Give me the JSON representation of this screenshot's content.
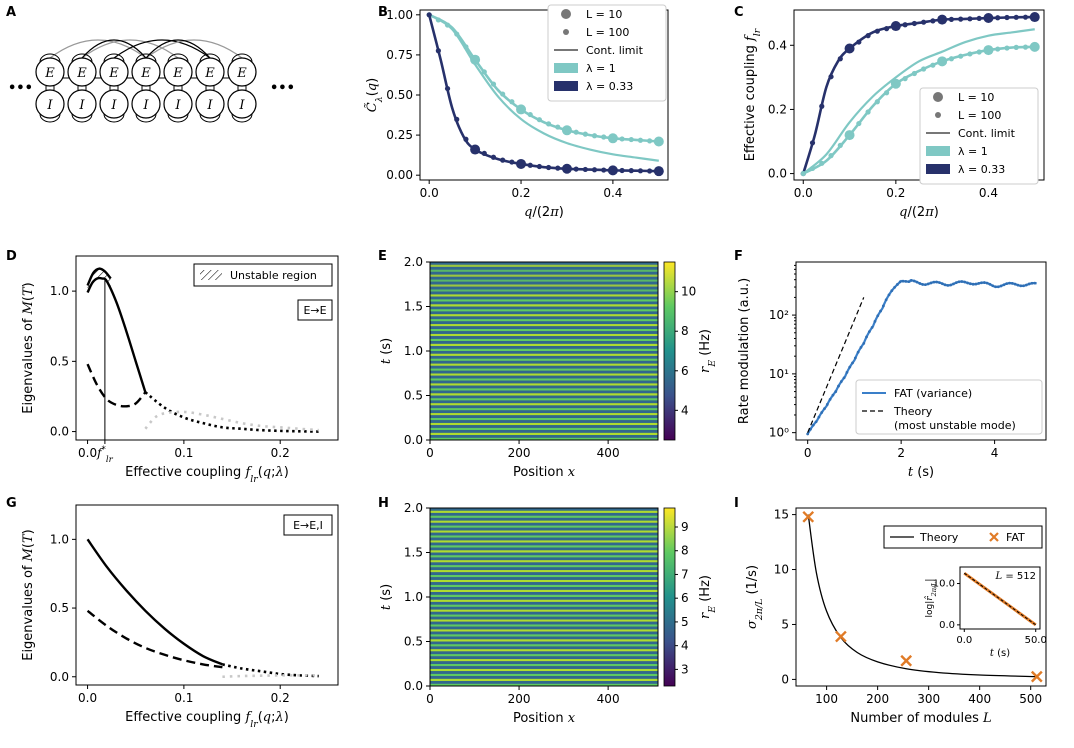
{
  "colors": {
    "teal": "#7fc8c4",
    "navy": "#27316b",
    "gray": "#777777",
    "orange": "#e07b27",
    "light_dots": "#c8c8c8"
  },
  "panels": {
    "A": {
      "label": "A",
      "node_top": "E",
      "node_bottom": "I",
      "ellipsis": "•••"
    },
    "B": {
      "label": "B"
    },
    "C": {
      "label": "C"
    },
    "D": {
      "label": "D",
      "legend_text": "Unstable region",
      "tag": "E→E",
      "fstar_label": "f*lr"
    },
    "E": {
      "label": "E"
    },
    "F": {
      "label": "F"
    },
    "G": {
      "label": "G",
      "tag": "E→E,I"
    },
    "H": {
      "label": "H"
    },
    "I": {
      "label": "I",
      "inset_title": "L = 512"
    }
  },
  "chart_data": [
    {
      "id": "B",
      "type": "line",
      "title": "",
      "xlabel": "q/(2π)",
      "ylabel": "C̃λ(q)",
      "xlim": [
        -0.02,
        0.52
      ],
      "ylim": [
        -0.03,
        1.03
      ],
      "xticks": [
        "0.0",
        "0.2",
        "0.4"
      ],
      "yticks": [
        "0.00",
        "0.25",
        "0.50",
        "0.75",
        "1.00"
      ],
      "legend": [
        "L = 10",
        "L = 100",
        "Cont. limit",
        "λ = 1",
        "λ = 0.33"
      ],
      "series": [
        {
          "name": "λ = 1",
          "kind": "curve",
          "x": [
            0,
            0.05,
            0.1,
            0.15,
            0.2,
            0.25,
            0.3,
            0.35,
            0.4,
            0.45,
            0.5
          ],
          "values": [
            1.0,
            0.92,
            0.72,
            0.53,
            0.41,
            0.33,
            0.28,
            0.25,
            0.23,
            0.22,
            0.21
          ]
        },
        {
          "name": "Cont. limit λ=1",
          "kind": "cont",
          "x": [
            0,
            0.05,
            0.1,
            0.15,
            0.2,
            0.25,
            0.3,
            0.35,
            0.4,
            0.45,
            0.5
          ],
          "values": [
            1.0,
            0.91,
            0.69,
            0.49,
            0.35,
            0.26,
            0.2,
            0.16,
            0.13,
            0.11,
            0.09
          ]
        },
        {
          "name": "λ = 0.33",
          "kind": "curve",
          "x": [
            0,
            0.025,
            0.05,
            0.075,
            0.1,
            0.15,
            0.2,
            0.25,
            0.3,
            0.35,
            0.4,
            0.45,
            0.5
          ],
          "values": [
            1.0,
            0.72,
            0.42,
            0.24,
            0.16,
            0.1,
            0.07,
            0.05,
            0.04,
            0.035,
            0.03,
            0.028,
            0.025
          ]
        }
      ],
      "big_points": [
        {
          "series": "λ = 1",
          "x": [
            0.1,
            0.2,
            0.3,
            0.4,
            0.5
          ],
          "values": [
            0.72,
            0.41,
            0.28,
            0.23,
            0.21
          ]
        },
        {
          "series": "λ = 0.33",
          "x": [
            0.1,
            0.2,
            0.3,
            0.4,
            0.5
          ],
          "values": [
            0.16,
            0.07,
            0.04,
            0.03,
            0.025
          ]
        }
      ]
    },
    {
      "id": "C",
      "type": "line",
      "xlabel": "q/(2π)",
      "ylabel": "Effective coupling flr",
      "xlim": [
        -0.02,
        0.52
      ],
      "ylim": [
        -0.02,
        0.51
      ],
      "xticks": [
        "0.0",
        "0.2",
        "0.4"
      ],
      "yticks": [
        "0.0",
        "0.2",
        "0.4"
      ],
      "legend": [
        "L = 10",
        "L = 100",
        "Cont. limit",
        "λ = 1",
        "λ = 0.33"
      ],
      "series": [
        {
          "name": "λ = 0.33",
          "kind": "curve",
          "x": [
            0,
            0.025,
            0.05,
            0.075,
            0.1,
            0.15,
            0.2,
            0.25,
            0.3,
            0.35,
            0.4,
            0.45,
            0.5
          ],
          "values": [
            0.0,
            0.12,
            0.27,
            0.35,
            0.39,
            0.44,
            0.46,
            0.47,
            0.48,
            0.482,
            0.485,
            0.487,
            0.488
          ]
        },
        {
          "name": "Cont. limit λ=1",
          "kind": "cont",
          "x": [
            0,
            0.05,
            0.1,
            0.15,
            0.2,
            0.25,
            0.3,
            0.35,
            0.4,
            0.45,
            0.5
          ],
          "values": [
            0.0,
            0.06,
            0.16,
            0.24,
            0.3,
            0.35,
            0.38,
            0.41,
            0.43,
            0.44,
            0.45
          ]
        },
        {
          "name": "λ = 1",
          "kind": "curve",
          "x": [
            0,
            0.05,
            0.1,
            0.15,
            0.2,
            0.25,
            0.3,
            0.35,
            0.4,
            0.45,
            0.5
          ],
          "values": [
            0.0,
            0.04,
            0.12,
            0.21,
            0.28,
            0.32,
            0.35,
            0.37,
            0.385,
            0.393,
            0.395
          ]
        }
      ],
      "big_points": [
        {
          "series": "λ = 1",
          "x": [
            0.1,
            0.2,
            0.3,
            0.4,
            0.5
          ],
          "values": [
            0.12,
            0.28,
            0.35,
            0.385,
            0.395
          ]
        },
        {
          "series": "λ = 0.33",
          "x": [
            0.1,
            0.2,
            0.3,
            0.4,
            0.5
          ],
          "values": [
            0.39,
            0.46,
            0.48,
            0.485,
            0.488
          ]
        }
      ]
    },
    {
      "id": "D",
      "type": "line",
      "xlabel": "Effective coupling flr(q;λ)",
      "ylabel": "Eigenvalues of M(T)",
      "xlim": [
        -0.012,
        0.26
      ],
      "ylim": [
        -0.06,
        1.25
      ],
      "xticks": [
        "0.0",
        "0.1",
        "0.2"
      ],
      "yticks": [
        "0.0",
        "0.5",
        "1.0"
      ],
      "fstar_x": 0.018,
      "series": [
        {
          "name": "upper-solid",
          "x": [
            0,
            0.005,
            0.01,
            0.015,
            0.02,
            0.03,
            0.04,
            0.05,
            0.06
          ],
          "values": [
            0.99,
            1.06,
            1.09,
            1.09,
            1.07,
            0.92,
            0.72,
            0.5,
            0.28
          ]
        },
        {
          "name": "upper-arc",
          "x": [
            0,
            0.006,
            0.012,
            0.018,
            0.024
          ],
          "values": [
            1.04,
            1.13,
            1.16,
            1.14,
            1.09
          ]
        },
        {
          "name": "lower-dashed",
          "x": [
            0,
            0.01,
            0.02,
            0.03,
            0.04,
            0.05,
            0.06
          ],
          "values": [
            0.48,
            0.33,
            0.23,
            0.19,
            0.18,
            0.2,
            0.28
          ]
        },
        {
          "name": "dotted-black",
          "x": [
            0.06,
            0.08,
            0.1,
            0.12,
            0.14,
            0.16,
            0.18,
            0.2,
            0.22,
            0.24
          ],
          "values": [
            0.28,
            0.17,
            0.1,
            0.06,
            0.03,
            0.02,
            0.01,
            0.005,
            0.002,
            0.0
          ]
        },
        {
          "name": "dotted-gray",
          "x": [
            0.06,
            0.07,
            0.08,
            0.1,
            0.12,
            0.14,
            0.16,
            0.18,
            0.2,
            0.22,
            0.24
          ],
          "values": [
            0.02,
            0.1,
            0.13,
            0.14,
            0.12,
            0.09,
            0.06,
            0.04,
            0.03,
            0.02,
            0.01
          ]
        }
      ]
    },
    {
      "id": "E",
      "type": "heatmap",
      "xlabel": "Position x",
      "ylabel": "t (s)",
      "xlim": [
        0,
        512
      ],
      "ylim": [
        0,
        2.0
      ],
      "xticks": [
        "0",
        "200",
        "400"
      ],
      "yticks": [
        "0.0",
        "0.5",
        "1.0",
        "1.5",
        "2.0"
      ],
      "colorbar_label": "rE (Hz)",
      "colorbar_ticks": [
        "4",
        "6",
        "8",
        "10"
      ],
      "colorbar_range": [
        2.5,
        11.5
      ],
      "stripes": 36,
      "phase_shift": true
    },
    {
      "id": "F",
      "type": "line",
      "xlabel": "t (s)",
      "ylabel": "Rate modulation (a.u.)",
      "xlim": [
        -0.25,
        5.1
      ],
      "ylim_log": [
        0.75,
        800
      ],
      "xticks": [
        "0",
        "2",
        "4"
      ],
      "yticks": [
        "10⁰",
        "10¹",
        "10²"
      ],
      "legend": [
        "FAT (variance)",
        "Theory",
        "(most unstable mode)"
      ],
      "series": [
        {
          "name": "FAT (variance)",
          "x": [
            0,
            0.2,
            0.4,
            0.6,
            0.8,
            1.0,
            1.2,
            1.4,
            1.6,
            1.8,
            2.0,
            2.5,
            3.0,
            3.5,
            4.0,
            4.5,
            4.9
          ],
          "values": [
            0.95,
            1.6,
            2.8,
            5.0,
            9.0,
            17,
            33,
            65,
            130,
            260,
            380,
            350,
            340,
            360,
            320,
            335,
            330
          ]
        },
        {
          "name": "Theory",
          "x": [
            0,
            1.2
          ],
          "values": [
            1.0,
            200
          ]
        }
      ]
    },
    {
      "id": "G",
      "type": "line",
      "xlabel": "Effective coupling flr(q;λ)",
      "ylabel": "Eigenvalues of M(T)",
      "xlim": [
        -0.012,
        0.26
      ],
      "ylim": [
        -0.06,
        1.25
      ],
      "xticks": [
        "0.0",
        "0.1",
        "0.2"
      ],
      "yticks": [
        "0.0",
        "0.5",
        "1.0"
      ],
      "series": [
        {
          "name": "solid",
          "x": [
            0,
            0.02,
            0.04,
            0.06,
            0.08,
            0.1,
            0.12,
            0.14
          ],
          "values": [
            1.0,
            0.8,
            0.63,
            0.48,
            0.35,
            0.24,
            0.15,
            0.09
          ]
        },
        {
          "name": "dashed",
          "x": [
            0,
            0.02,
            0.04,
            0.06,
            0.08,
            0.1,
            0.12,
            0.14
          ],
          "values": [
            0.48,
            0.37,
            0.28,
            0.21,
            0.16,
            0.12,
            0.09,
            0.07
          ]
        },
        {
          "name": "dotted-black",
          "x": [
            0.14,
            0.16,
            0.18,
            0.2,
            0.22,
            0.24
          ],
          "values": [
            0.09,
            0.06,
            0.04,
            0.02,
            0.01,
            0.005
          ]
        },
        {
          "name": "dotted-gray",
          "x": [
            0.14,
            0.16,
            0.18,
            0.2,
            0.22,
            0.24
          ],
          "values": [
            0.0,
            0.005,
            0.008,
            0.01,
            0.01,
            0.01
          ]
        }
      ]
    },
    {
      "id": "H",
      "type": "heatmap",
      "xlabel": "Position x",
      "ylabel": "t (s)",
      "xlim": [
        0,
        512
      ],
      "ylim": [
        0,
        2.0
      ],
      "xticks": [
        "0",
        "200",
        "400"
      ],
      "yticks": [
        "0.0",
        "0.5",
        "1.0",
        "1.5",
        "2.0"
      ],
      "colorbar_label": "rE (Hz)",
      "colorbar_ticks": [
        "3",
        "4",
        "5",
        "6",
        "7",
        "8",
        "9"
      ],
      "colorbar_range": [
        2.3,
        9.8
      ],
      "stripes": 36,
      "phase_shift": false
    },
    {
      "id": "I",
      "type": "line",
      "xlabel": "Number of modules L",
      "ylabel": "σ2π/L (1/s)",
      "xlim": [
        40,
        530
      ],
      "ylim": [
        -0.6,
        15.6
      ],
      "xticks": [
        "100",
        "200",
        "300",
        "400",
        "500"
      ],
      "yticks": [
        "0",
        "5",
        "10",
        "15"
      ],
      "legend": [
        "Theory",
        "FAT"
      ],
      "series": [
        {
          "name": "Theory",
          "x": [
            64,
            80,
            100,
            128,
            160,
            200,
            256,
            320,
            400,
            512
          ],
          "values": [
            15.0,
            9.7,
            6.2,
            3.8,
            2.45,
            1.6,
            0.97,
            0.62,
            0.4,
            0.25
          ]
        },
        {
          "name": "FAT",
          "kind": "markers",
          "x": [
            64,
            128,
            256,
            512
          ],
          "values": [
            14.8,
            3.9,
            1.7,
            0.25
          ]
        }
      ],
      "inset": {
        "xlabel": "t (s)",
        "ylabel": "log|r̂2π/L|",
        "xticks": [
          "0.0",
          "50.0"
        ],
        "yticks": [
          "0.0",
          "10.0"
        ],
        "x": [
          0,
          50
        ],
        "values": [
          12.5,
          0.0
        ],
        "xlim": [
          -3,
          53
        ],
        "ylim": [
          -1,
          14
        ]
      }
    }
  ]
}
